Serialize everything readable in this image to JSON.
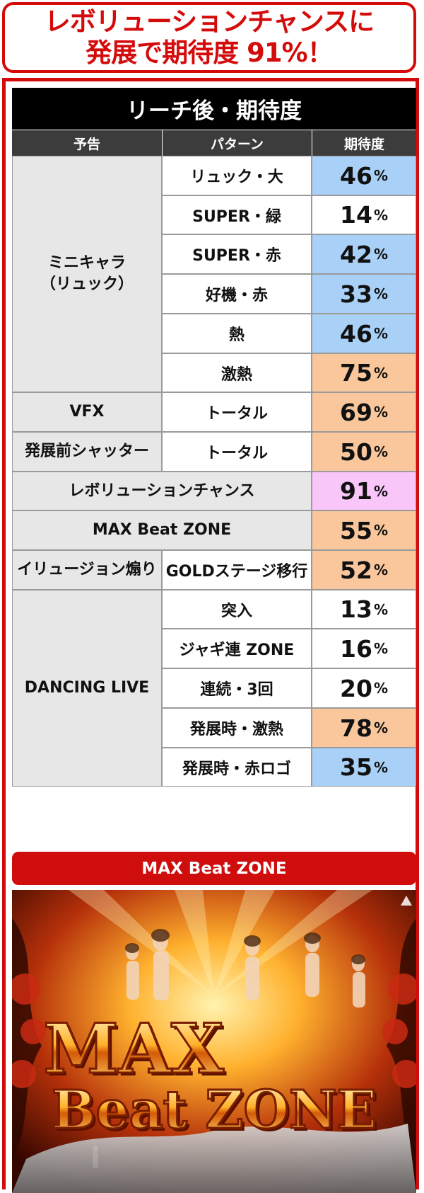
{
  "headline": {
    "line1": "レボリューションチャンスに",
    "line2": "発展で期待度 91%！"
  },
  "table": {
    "title": "リーチ後・期待度",
    "headers": {
      "notice": "予告",
      "pattern": "パターン",
      "expectation": "期待度"
    },
    "groups": [
      {
        "notice": "ミニキャラ\n（リュック）",
        "rows": [
          {
            "pattern": "リュック・大",
            "value": "46",
            "color": "#a9d1f7"
          },
          {
            "pattern": "SUPER・緑",
            "value": "14",
            "color": "#ffffff"
          },
          {
            "pattern": "SUPER・赤",
            "value": "42",
            "color": "#a9d1f7"
          },
          {
            "pattern": "好機・赤",
            "value": "33",
            "color": "#a9d1f7"
          },
          {
            "pattern": "熱",
            "value": "46",
            "color": "#a9d1f7"
          },
          {
            "pattern": "激熱",
            "value": "75",
            "color": "#f9c79b"
          }
        ]
      },
      {
        "notice": "VFX",
        "rows": [
          {
            "pattern": "トータル",
            "value": "69",
            "color": "#f9c79b"
          }
        ]
      },
      {
        "notice": "発展前シャッター",
        "rows": [
          {
            "pattern": "トータル",
            "value": "50",
            "color": "#f9c79b"
          }
        ]
      },
      {
        "notice": "レボリューションチャンス",
        "rows": [
          {
            "pattern": "",
            "value": "91",
            "color": "#f9c6f9"
          }
        ]
      },
      {
        "notice": "MAX Beat ZONE",
        "rows": [
          {
            "pattern": "",
            "value": "55",
            "color": "#f9c79b"
          }
        ]
      },
      {
        "notice": "イリュージョン煽り",
        "rows": [
          {
            "pattern": "GOLDステージ移行",
            "value": "52",
            "color": "#f9c79b"
          }
        ]
      },
      {
        "notice": "DANCING LIVE",
        "rows": [
          {
            "pattern": "突入",
            "value": "13",
            "color": "#ffffff"
          },
          {
            "pattern": "ジャギ連 ZONE",
            "value": "16",
            "color": "#ffffff"
          },
          {
            "pattern": "連続・3回",
            "value": "20",
            "color": "#ffffff"
          },
          {
            "pattern": "発展時・激熱",
            "value": "78",
            "color": "#f9c79b"
          },
          {
            "pattern": "発展時・赤ロゴ",
            "value": "35",
            "color": "#a9d1f7"
          }
        ]
      }
    ],
    "unit": "%"
  },
  "section": {
    "label": "MAX Beat ZONE"
  },
  "artwork": {
    "logo_line1": "MAX",
    "logo_line2": "Beat ZONE"
  }
}
